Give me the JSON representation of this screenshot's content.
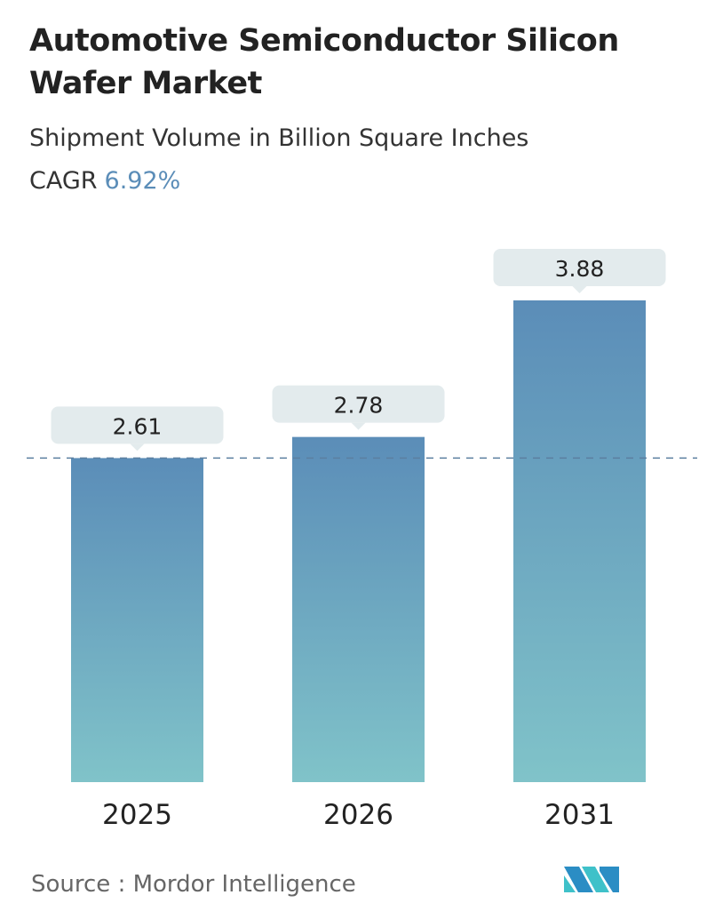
{
  "title": "Automotive Semiconductor Silicon Wafer Market",
  "subtitle": "Shipment Volume in Billion Square Inches",
  "cagr_label": "CAGR",
  "cagr_value": "6.92%",
  "source": "Source :  Mordor Intelligence",
  "logo_text": "Mordor Intelligence",
  "colors": {
    "bar_top": "#5b8db8",
    "bar_bottom": "#80c3c9",
    "label_bg": "#e3ebed",
    "cagr": "#5b8db8"
  },
  "chart_data": {
    "type": "bar",
    "title": "Automotive Semiconductor Silicon Wafer Market",
    "categories": [
      "2025",
      "2026",
      "2031"
    ],
    "values": [
      2.61,
      2.78,
      3.88
    ],
    "data_labels": [
      "2.61",
      "2.78",
      "3.88"
    ],
    "reference_line": 2.61,
    "ylabel": "Shipment Volume in Billion Square Inches",
    "grid": false
  }
}
